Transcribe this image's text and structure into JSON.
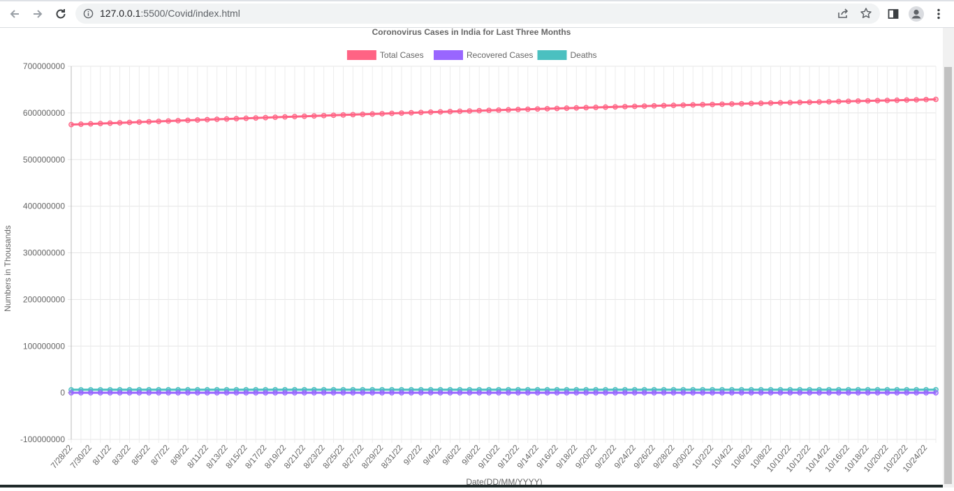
{
  "browser": {
    "url_host": "127.0.0.1",
    "url_rest": ":5500/Covid/index.html"
  },
  "chart_data": {
    "type": "line",
    "title": "Coronovirus Cases in India for Last Three Months",
    "xlabel": "Date(DD/MM/YYYY)",
    "ylabel": "Numbers in Thousands",
    "ylim": [
      -100000000,
      700000000
    ],
    "yticks": [
      -100000000,
      0,
      100000000,
      200000000,
      300000000,
      400000000,
      500000000,
      600000000,
      700000000
    ],
    "ytick_labels": [
      "-100000000",
      "0",
      "100000000",
      "200000000",
      "300000000",
      "400000000",
      "500000000",
      "600000000",
      "700000000"
    ],
    "legend_position": "top",
    "start_date": "7/28/22",
    "num_points": 90,
    "x_tick_labels": [
      "7/28/22",
      "7/30/22",
      "8/1/22",
      "8/3/22",
      "8/5/22",
      "8/7/22",
      "8/9/22",
      "8/11/22",
      "8/13/22",
      "8/15/22",
      "8/17/22",
      "8/19/22",
      "8/21/22",
      "8/23/22",
      "8/25/22",
      "8/27/22",
      "8/29/22",
      "8/31/22",
      "9/2/22",
      "9/4/22",
      "9/6/22",
      "9/8/22",
      "9/10/22",
      "9/12/22",
      "9/14/22",
      "9/16/22",
      "9/18/22",
      "9/20/22",
      "9/22/22",
      "9/24/22",
      "9/26/22",
      "9/28/22",
      "9/30/22",
      "10/2/22",
      "10/4/22",
      "10/6/22",
      "10/8/22",
      "10/10/22",
      "10/12/22",
      "10/14/22",
      "10/16/22",
      "10/18/22",
      "10/20/22",
      "10/22/22",
      "10/24/22"
    ],
    "series": [
      {
        "name": "Total Cases",
        "color": "#ff6384",
        "start": 575000000,
        "end": 629000000
      },
      {
        "name": "Recovered Cases",
        "color": "#9966ff",
        "start": 0,
        "end": 0
      },
      {
        "name": "Deaths",
        "color": "#4bc0c0",
        "start": 6400000,
        "end": 6580000
      }
    ]
  }
}
